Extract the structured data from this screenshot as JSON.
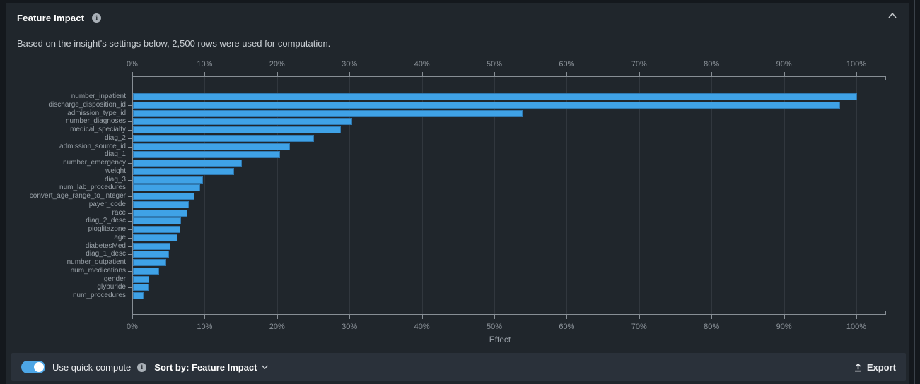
{
  "header": {
    "title": "Feature Impact"
  },
  "subtitle": "Based on the insight's settings below, 2,500 rows were used for computation.",
  "icons": {
    "info": "i"
  },
  "chart_data": {
    "type": "bar",
    "orientation": "horizontal",
    "title": "Feature Impact",
    "xlabel": "Effect",
    "x_ticks": [
      "0%",
      "10%",
      "20%",
      "30%",
      "40%",
      "50%",
      "60%",
      "70%",
      "80%",
      "90%",
      "100%"
    ],
    "xlim": [
      0,
      104
    ],
    "grid": true,
    "bar_color": "#3FA2E7",
    "categories": [
      "number_inpatient",
      "discharge_disposition_id",
      "admission_type_id",
      "number_diagnoses",
      "medical_specialty",
      "diag_2",
      "admission_source_id",
      "diag_1",
      "number_emergency",
      "weight",
      "diag_3",
      "num_lab_procedures",
      "convert_age_range_to_integer",
      "payer_code",
      "race",
      "diag_2_desc",
      "pioglitazone",
      "age",
      "diabetesMed",
      "diag_1_desc",
      "number_outpatient",
      "num_medications",
      "gender",
      "glyburide",
      "num_procedures"
    ],
    "values": [
      100,
      97.7,
      53.8,
      30.3,
      28.7,
      25,
      21.7,
      20.3,
      15,
      14,
      9.7,
      9.3,
      8.5,
      7.7,
      7.5,
      6.6,
      6.5,
      6.2,
      5.2,
      5,
      4.6,
      3.6,
      2.2,
      2.1,
      1.5
    ]
  },
  "footer": {
    "toggle_label": "Use quick-compute",
    "toggle_state": "on",
    "toggle_color": "#4DA6E6",
    "sort_label": "Sort by: Feature Impact",
    "export_label": "Export"
  }
}
